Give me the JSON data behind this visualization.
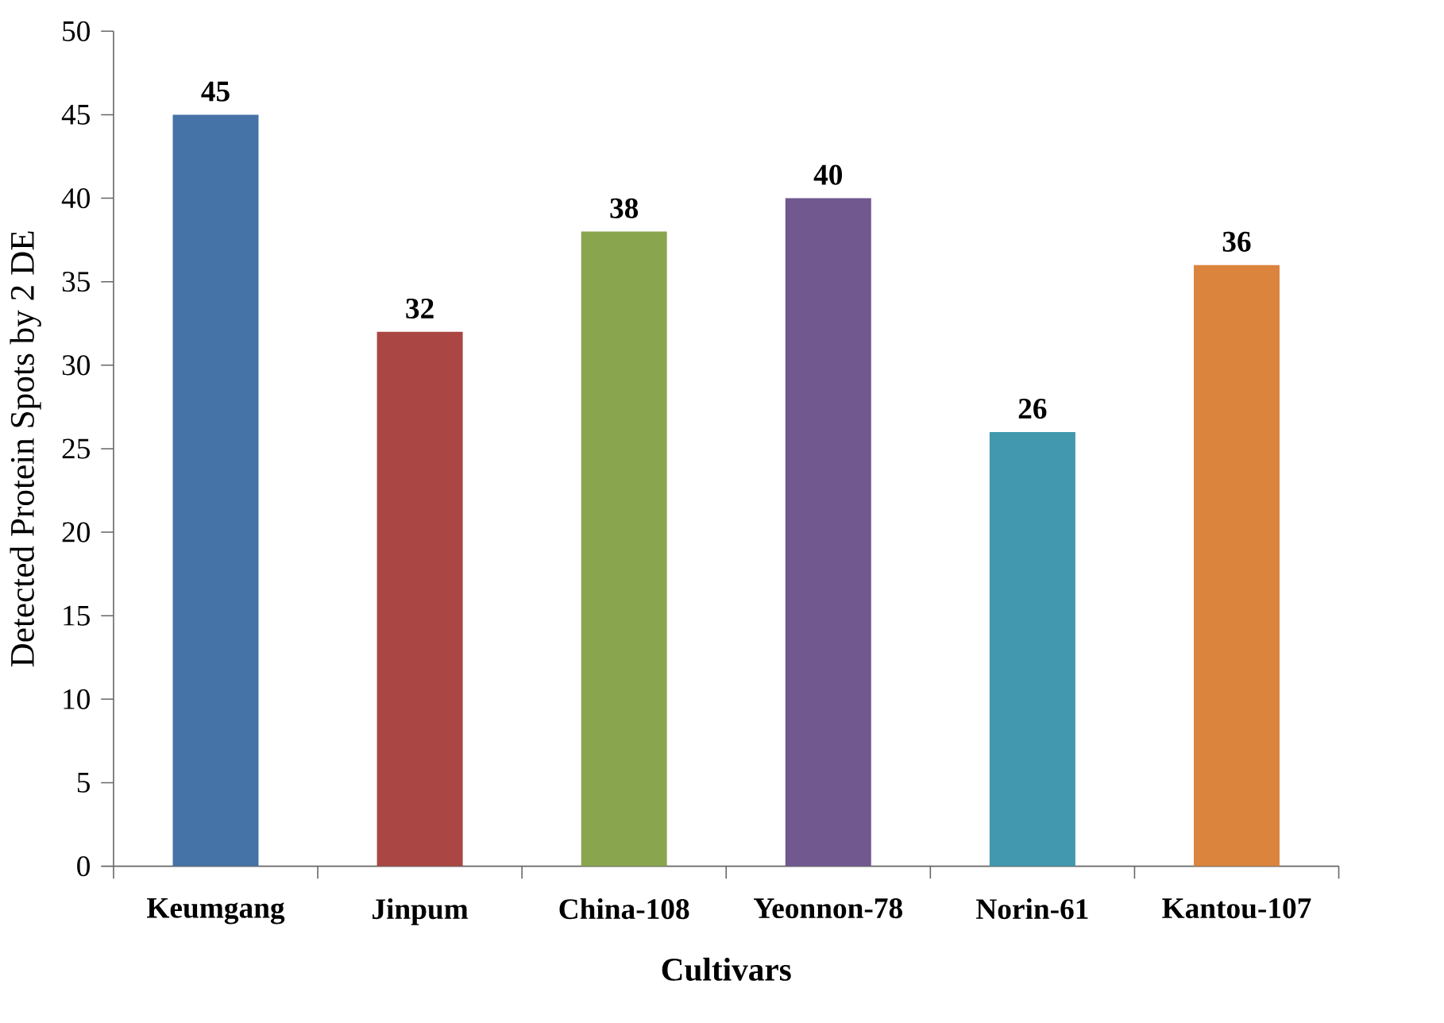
{
  "chart_data": {
    "type": "bar",
    "xlabel": "Cultivars",
    "ylabel": "Detected Protein Spots by 2 DE",
    "categories": [
      "Keumgang",
      "Jinpum",
      "China-108",
      "Yeonnon-78",
      "Norin-61",
      "Kantou-107"
    ],
    "values": [
      45,
      32,
      38,
      40,
      26,
      36
    ],
    "colors": [
      "#4572a7",
      "#aa4643",
      "#89a54e",
      "#71588f",
      "#4198af",
      "#db843d"
    ],
    "ylim": [
      0,
      50
    ],
    "yticks": [
      0,
      5,
      10,
      15,
      20,
      25,
      30,
      35,
      40,
      45,
      50
    ],
    "data_labels": true
  }
}
